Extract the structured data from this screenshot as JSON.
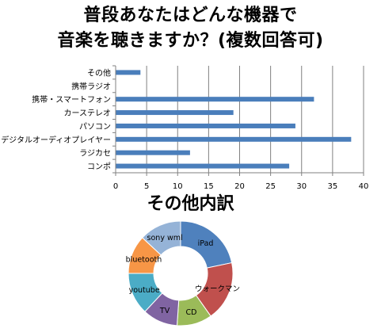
{
  "chart_data": [
    {
      "type": "bar",
      "orientation": "horizontal",
      "title_lines": [
        "普段あなたはどんな機器で",
        "音楽を聴きますか？(複数回答可)"
      ],
      "categories": [
        "その他",
        "携帯ラジオ",
        "携帯・スマートフォン",
        "カーステレオ",
        "パソコン",
        "デジタルオーディオプレイヤー",
        "ラジカセ",
        "コンポ"
      ],
      "values": [
        4,
        0,
        32,
        19,
        29,
        38,
        12,
        28
      ],
      "xlim": [
        0,
        40
      ],
      "xticks": [
        0,
        5,
        10,
        15,
        20,
        25,
        30,
        35,
        40
      ],
      "grid": true,
      "color": "#4a7ebb"
    },
    {
      "type": "pie",
      "donut": true,
      "title": "その他内訳",
      "slices": [
        {
          "label": "iPad",
          "value": 20,
          "color": "#4f81bd"
        },
        {
          "label": "ウォークマン",
          "value": 17,
          "color": "#c0504d"
        },
        {
          "label": "CD",
          "value": 10,
          "color": "#9bbb59"
        },
        {
          "label": "TV",
          "value": 10,
          "color": "#8064a2"
        },
        {
          "label": "youtube",
          "value": 12,
          "color": "#4bacc6"
        },
        {
          "label": "bluetooth",
          "value": 11,
          "color": "#f79646"
        },
        {
          "label": "sony wml",
          "value": 12,
          "color": "#95b3d7"
        }
      ]
    }
  ]
}
